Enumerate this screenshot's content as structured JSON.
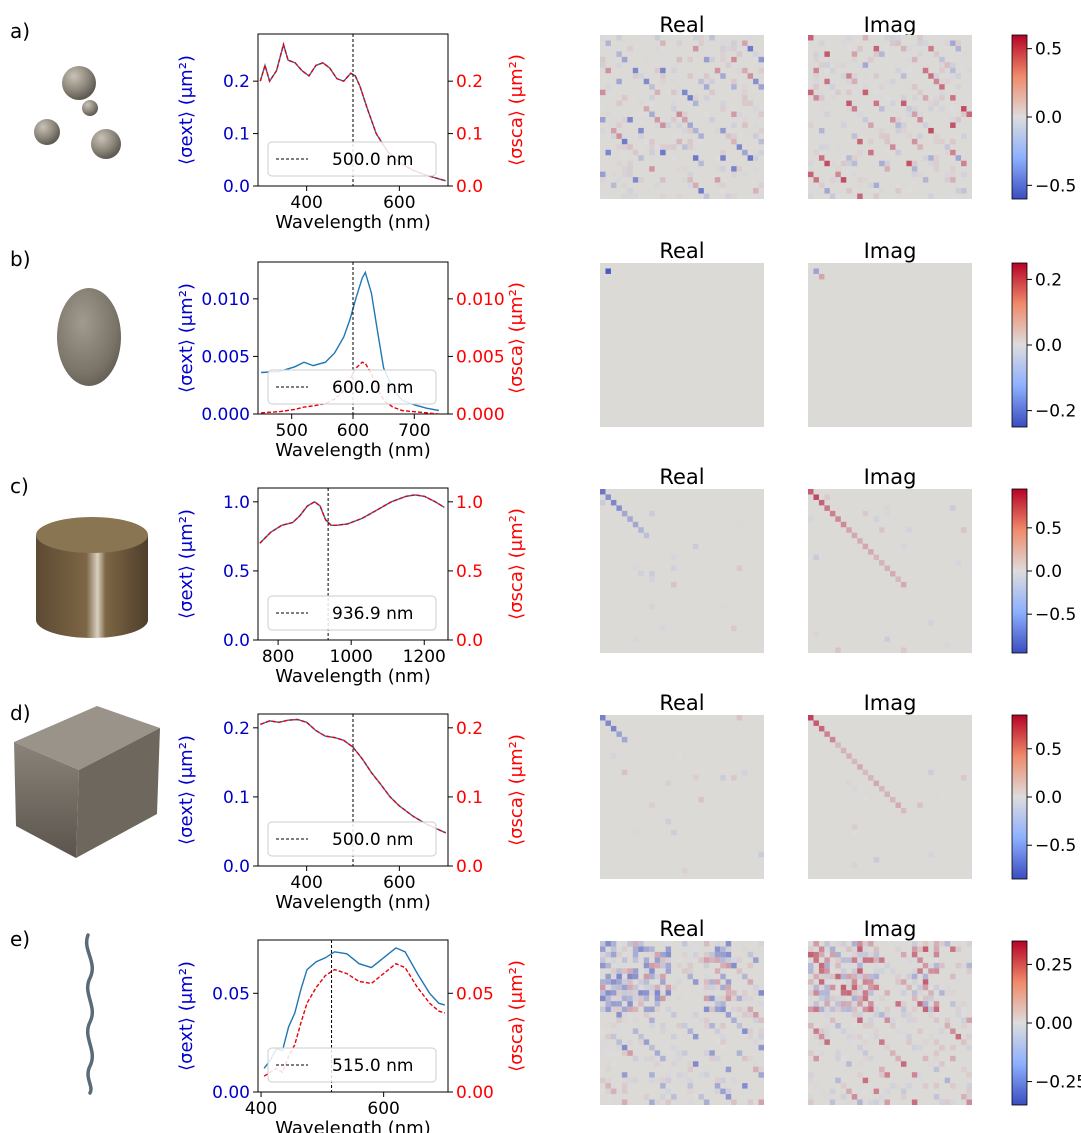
{
  "chart_data": [
    {
      "panel_label": "a)",
      "type": "line",
      "xlabel": "Wavelength (nm)",
      "ylabel_left": "⟨σext⟩ (μm²)",
      "ylabel_right": "⟨σsca⟩ (μm²)",
      "xlim": [
        295,
        705
      ],
      "ylim": [
        0,
        0.29
      ],
      "xticks": [
        400,
        600
      ],
      "yticks": [
        0.0,
        0.1,
        0.2
      ],
      "ytick_labels": [
        "0.0",
        "0.1",
        "0.2"
      ],
      "vline": 500,
      "legend_label": "500.0 nm",
      "series": [
        {
          "x": [
            300,
            310,
            320,
            335,
            350,
            360,
            375,
            390,
            405,
            420,
            435,
            450,
            465,
            480,
            495,
            505,
            515,
            530,
            550,
            575,
            600,
            630,
            660,
            700
          ],
          "y": [
            0.2,
            0.23,
            0.2,
            0.22,
            0.27,
            0.24,
            0.235,
            0.22,
            0.21,
            0.23,
            0.235,
            0.225,
            0.205,
            0.2,
            0.215,
            0.21,
            0.19,
            0.15,
            0.1,
            0.065,
            0.045,
            0.03,
            0.02,
            0.01
          ]
        },
        {
          "x": [
            300,
            310,
            320,
            335,
            350,
            360,
            375,
            390,
            405,
            420,
            435,
            450,
            465,
            480,
            495,
            505,
            515,
            530,
            550,
            575,
            600,
            630,
            660,
            700
          ],
          "y": [
            0.2,
            0.23,
            0.2,
            0.22,
            0.27,
            0.24,
            0.235,
            0.22,
            0.21,
            0.23,
            0.235,
            0.225,
            0.205,
            0.2,
            0.215,
            0.21,
            0.19,
            0.15,
            0.1,
            0.065,
            0.045,
            0.03,
            0.02,
            0.01
          ]
        }
      ],
      "colorbar_ticks": [
        0.5,
        0.0,
        -0.5
      ],
      "colorbar_labels": [
        "0.5",
        "0.0",
        "−0.5"
      ],
      "colorbar_range": [
        -0.6,
        0.6
      ],
      "matrix_titles": [
        "Real",
        "Imag"
      ]
    },
    {
      "panel_label": "b)",
      "type": "line",
      "xlabel": "Wavelength (nm)",
      "ylabel_left": "⟨σext⟩ (μm²)",
      "ylabel_right": "⟨σsca⟩ (μm²)",
      "xlim": [
        445,
        755
      ],
      "ylim": [
        0,
        0.0132
      ],
      "xticks": [
        500,
        600,
        700
      ],
      "yticks": [
        0.0,
        0.005,
        0.01
      ],
      "ytick_labels": [
        "0.000",
        "0.005",
        "0.010"
      ],
      "vline": 600,
      "legend_label": "600.0 nm",
      "series": [
        {
          "x": [
            450,
            480,
            505,
            520,
            535,
            555,
            570,
            585,
            595,
            605,
            615,
            620,
            630,
            640,
            650,
            665,
            680,
            700,
            720,
            740
          ],
          "y": [
            0.0036,
            0.0037,
            0.0041,
            0.0045,
            0.0042,
            0.0045,
            0.0053,
            0.0067,
            0.0082,
            0.0101,
            0.0118,
            0.0123,
            0.0105,
            0.0072,
            0.004,
            0.0022,
            0.0012,
            0.0008,
            0.0005,
            0.0003
          ]
        },
        {
          "x": [
            450,
            480,
            505,
            520,
            535,
            555,
            570,
            585,
            595,
            605,
            615,
            620,
            630,
            640,
            650,
            665,
            680,
            700,
            720,
            740
          ],
          "y": [
            0.0001,
            0.0002,
            0.0004,
            0.0006,
            0.0007,
            0.0009,
            0.0013,
            0.002,
            0.003,
            0.004,
            0.0045,
            0.0044,
            0.0035,
            0.0022,
            0.0012,
            0.0006,
            0.0003,
            0.0002,
            0.0001,
            0.0
          ]
        }
      ],
      "colorbar_ticks": [
        0.2,
        0.0,
        -0.2
      ],
      "colorbar_labels": [
        "0.2",
        "0.0",
        "−0.2"
      ],
      "colorbar_range": [
        -0.25,
        0.25
      ],
      "matrix_titles": [
        "Real",
        "Imag"
      ]
    },
    {
      "panel_label": "c)",
      "type": "line",
      "xlabel": "Wavelength (nm)",
      "ylabel_left": "⟨σext⟩ (μm²)",
      "ylabel_right": "⟨σsca⟩ (μm²)",
      "xlim": [
        745,
        1265
      ],
      "ylim": [
        0,
        1.1
      ],
      "xticks": [
        800,
        1000,
        1200
      ],
      "yticks": [
        0.0,
        0.5,
        1.0
      ],
      "ytick_labels": [
        "0.0",
        "0.5",
        "1.0"
      ],
      "vline": 936.9,
      "legend_label": "936.9 nm",
      "series": [
        {
          "x": [
            750,
            780,
            810,
            840,
            860,
            880,
            900,
            915,
            930,
            945,
            960,
            990,
            1030,
            1070,
            1110,
            1150,
            1175,
            1200,
            1230,
            1255
          ],
          "y": [
            0.7,
            0.78,
            0.83,
            0.85,
            0.9,
            0.97,
            1.0,
            0.97,
            0.87,
            0.83,
            0.83,
            0.84,
            0.88,
            0.94,
            1.0,
            1.04,
            1.05,
            1.04,
            1.0,
            0.96
          ]
        },
        {
          "x": [
            750,
            780,
            810,
            840,
            860,
            880,
            900,
            915,
            930,
            945,
            960,
            990,
            1030,
            1070,
            1110,
            1150,
            1175,
            1200,
            1230,
            1255
          ],
          "y": [
            0.7,
            0.78,
            0.83,
            0.85,
            0.9,
            0.97,
            1.0,
            0.97,
            0.87,
            0.83,
            0.83,
            0.84,
            0.88,
            0.94,
            1.0,
            1.04,
            1.05,
            1.04,
            1.0,
            0.96
          ]
        }
      ],
      "colorbar_ticks": [
        0.5,
        0.0,
        -0.5
      ],
      "colorbar_labels": [
        "0.5",
        "0.0",
        "−0.5"
      ],
      "colorbar_range": [
        -0.95,
        0.95
      ],
      "matrix_titles": [
        "Real",
        "Imag"
      ]
    },
    {
      "panel_label": "d)",
      "type": "line",
      "xlabel": "Wavelength (nm)",
      "ylabel_left": "⟨σext⟩ (μm²)",
      "ylabel_right": "⟨σsca⟩ (μm²)",
      "xlim": [
        295,
        705
      ],
      "ylim": [
        0,
        0.22
      ],
      "xticks": [
        400,
        600
      ],
      "yticks": [
        0.0,
        0.1,
        0.2
      ],
      "ytick_labels": [
        "0.0",
        "0.1",
        "0.2"
      ],
      "vline": 500,
      "legend_label": "500.0 nm",
      "series": [
        {
          "x": [
            300,
            320,
            340,
            360,
            380,
            400,
            420,
            440,
            460,
            480,
            500,
            520,
            540,
            560,
            580,
            600,
            630,
            660,
            700
          ],
          "y": [
            0.205,
            0.21,
            0.208,
            0.211,
            0.212,
            0.208,
            0.196,
            0.188,
            0.186,
            0.182,
            0.172,
            0.155,
            0.135,
            0.118,
            0.1,
            0.087,
            0.072,
            0.06,
            0.048
          ]
        },
        {
          "x": [
            300,
            320,
            340,
            360,
            380,
            400,
            420,
            440,
            460,
            480,
            500,
            520,
            540,
            560,
            580,
            600,
            630,
            660,
            700
          ],
          "y": [
            0.205,
            0.21,
            0.208,
            0.211,
            0.212,
            0.208,
            0.196,
            0.188,
            0.186,
            0.182,
            0.172,
            0.155,
            0.135,
            0.118,
            0.1,
            0.087,
            0.072,
            0.06,
            0.048
          ]
        }
      ],
      "colorbar_ticks": [
        0.5,
        0.0,
        -0.5
      ],
      "colorbar_labels": [
        "0.5",
        "0.0",
        "−0.5"
      ],
      "colorbar_range": [
        -0.85,
        0.85
      ],
      "matrix_titles": [
        "Real",
        "Imag"
      ]
    },
    {
      "panel_label": "e)",
      "type": "line",
      "xlabel": "Wavelength (nm)",
      "ylabel_left": "⟨σext⟩ (μm²)",
      "ylabel_right": "⟨σsca⟩ (μm²)",
      "xlim": [
        395,
        705
      ],
      "ylim": [
        0,
        0.077
      ],
      "xticks": [
        400,
        600
      ],
      "yticks": [
        0.0,
        0.05
      ],
      "ytick_labels": [
        "0.00",
        "0.05"
      ],
      "vline": 515,
      "legend_label": "515.0 nm",
      "series": [
        {
          "x": [
            405,
            415,
            425,
            435,
            445,
            455,
            465,
            475,
            490,
            505,
            520,
            540,
            560,
            580,
            600,
            620,
            635,
            655,
            675,
            690,
            700
          ],
          "y": [
            0.012,
            0.016,
            0.022,
            0.021,
            0.033,
            0.04,
            0.052,
            0.062,
            0.066,
            0.068,
            0.071,
            0.07,
            0.065,
            0.063,
            0.068,
            0.073,
            0.071,
            0.06,
            0.05,
            0.045,
            0.044
          ]
        },
        {
          "x": [
            405,
            415,
            425,
            435,
            445,
            455,
            465,
            475,
            490,
            505,
            520,
            540,
            560,
            580,
            600,
            620,
            635,
            655,
            675,
            690,
            700
          ],
          "y": [
            0.008,
            0.01,
            0.012,
            0.01,
            0.018,
            0.024,
            0.035,
            0.045,
            0.053,
            0.059,
            0.062,
            0.06,
            0.056,
            0.055,
            0.06,
            0.065,
            0.063,
            0.053,
            0.045,
            0.041,
            0.04
          ]
        }
      ],
      "colorbar_ticks": [
        0.25,
        0.0,
        -0.25
      ],
      "colorbar_labels": [
        "0.25",
        "0.00",
        "−0.25"
      ],
      "colorbar_range": [
        -0.35,
        0.35
      ],
      "matrix_titles": [
        "Real",
        "Imag"
      ]
    }
  ],
  "colors": {
    "ext_line": "#1f77b4",
    "sca_line": "#e8000b",
    "left_axis_text": "#0000cc",
    "right_axis_text": "#ff0000",
    "matrix_bg": "#dcdad7"
  }
}
